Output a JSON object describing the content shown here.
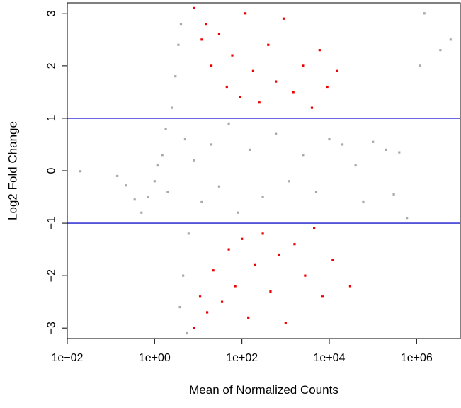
{
  "chart_data": {
    "type": "scatter",
    "title": "",
    "xlabel": "Mean of Normalized Counts",
    "ylabel": "Log2 Fold Change",
    "x_scale": "log10",
    "xlim": [
      0.01,
      10000000
    ],
    "ylim": [
      -3.2,
      3.2
    ],
    "x_ticks": [
      {
        "value": 0.01,
        "label": "1e−02"
      },
      {
        "value": 1,
        "label": "1e+00"
      },
      {
        "value": 100,
        "label": "1e+02"
      },
      {
        "value": 10000,
        "label": "1e+04"
      },
      {
        "value": 1000000,
        "label": "1e+06"
      }
    ],
    "y_ticks": [
      {
        "value": -3,
        "label": "−3"
      },
      {
        "value": -2,
        "label": "−2"
      },
      {
        "value": -1,
        "label": "−1"
      },
      {
        "value": 0,
        "label": "0"
      },
      {
        "value": 1,
        "label": "1"
      },
      {
        "value": 2,
        "label": "2"
      },
      {
        "value": 3,
        "label": "3"
      }
    ],
    "reference_lines": [
      {
        "axis": "y",
        "value": 1,
        "color": "#3b3bd6"
      },
      {
        "axis": "y",
        "value": -1,
        "color": "#3b3bd6"
      }
    ],
    "series": [
      {
        "color": "#a9a9a9",
        "points": [
          [
            0.02,
            -0.01
          ],
          [
            0.14,
            -0.1
          ],
          [
            0.22,
            -0.28
          ],
          [
            0.35,
            -0.55
          ],
          [
            0.5,
            -0.8
          ],
          [
            0.7,
            -0.5
          ],
          [
            1.0,
            -0.2
          ],
          [
            1.2,
            0.1
          ],
          [
            1.5,
            0.3
          ],
          [
            2.0,
            -0.4
          ],
          [
            1.8,
            0.8
          ],
          [
            2.5,
            1.2
          ],
          [
            3.0,
            1.8
          ],
          [
            3.5,
            2.4
          ],
          [
            4.0,
            2.8
          ],
          [
            5.0,
            0.6
          ],
          [
            6.0,
            -1.2
          ],
          [
            4.5,
            -2.0
          ],
          [
            3.8,
            -2.6
          ],
          [
            5.5,
            -3.1
          ],
          [
            8.0,
            0.2
          ],
          [
            12.0,
            -0.6
          ],
          [
            20.0,
            0.5
          ],
          [
            30.0,
            -0.3
          ],
          [
            50.0,
            0.9
          ],
          [
            80.0,
            -0.8
          ],
          [
            150.0,
            0.4
          ],
          [
            300.0,
            -0.5
          ],
          [
            600.0,
            0.7
          ],
          [
            1200.0,
            -0.2
          ],
          [
            2500.0,
            0.3
          ],
          [
            5000.0,
            -0.4
          ],
          [
            10000.0,
            0.6
          ],
          [
            20000.0,
            0.5
          ],
          [
            40000.0,
            0.1
          ],
          [
            60000.0,
            -0.6
          ],
          [
            100000.0,
            0.55
          ],
          [
            200000.0,
            0.4
          ],
          [
            300000.0,
            -0.45
          ],
          [
            400000.0,
            0.35
          ],
          [
            600000.0,
            -0.9
          ],
          [
            1200000.0,
            2.0
          ],
          [
            3500000.0,
            2.3
          ],
          [
            6000000.0,
            2.5
          ],
          [
            1500000.0,
            3.0
          ]
        ]
      },
      {
        "color": "#ee0000",
        "points": [
          [
            8.0,
            3.1
          ],
          [
            12.0,
            2.5
          ],
          [
            15.0,
            2.8
          ],
          [
            20.0,
            2.0
          ],
          [
            30.0,
            2.6
          ],
          [
            45.0,
            1.6
          ],
          [
            60.0,
            2.2
          ],
          [
            90.0,
            1.4
          ],
          [
            120.0,
            3.0
          ],
          [
            180.0,
            1.9
          ],
          [
            250.0,
            1.3
          ],
          [
            400.0,
            2.4
          ],
          [
            600.0,
            1.7
          ],
          [
            900.0,
            2.9
          ],
          [
            1500.0,
            1.5
          ],
          [
            2500.0,
            2.0
          ],
          [
            4000.0,
            1.2
          ],
          [
            6000.0,
            2.3
          ],
          [
            9000.0,
            1.6
          ],
          [
            15000.0,
            1.9
          ],
          [
            8.0,
            -3.0
          ],
          [
            11.0,
            -2.4
          ],
          [
            16.0,
            -2.7
          ],
          [
            22.0,
            -1.9
          ],
          [
            35.0,
            -2.5
          ],
          [
            50.0,
            -1.5
          ],
          [
            70.0,
            -2.2
          ],
          [
            100.0,
            -1.3
          ],
          [
            140.0,
            -2.8
          ],
          [
            200.0,
            -1.8
          ],
          [
            300.0,
            -1.2
          ],
          [
            450.0,
            -2.3
          ],
          [
            700.0,
            -1.6
          ],
          [
            1000.0,
            -2.9
          ],
          [
            1600.0,
            -1.4
          ],
          [
            2800.0,
            -2.0
          ],
          [
            4500.0,
            -1.1
          ],
          [
            7000.0,
            -2.4
          ],
          [
            12000.0,
            -1.7
          ],
          [
            30000.0,
            -2.2
          ]
        ]
      }
    ]
  }
}
